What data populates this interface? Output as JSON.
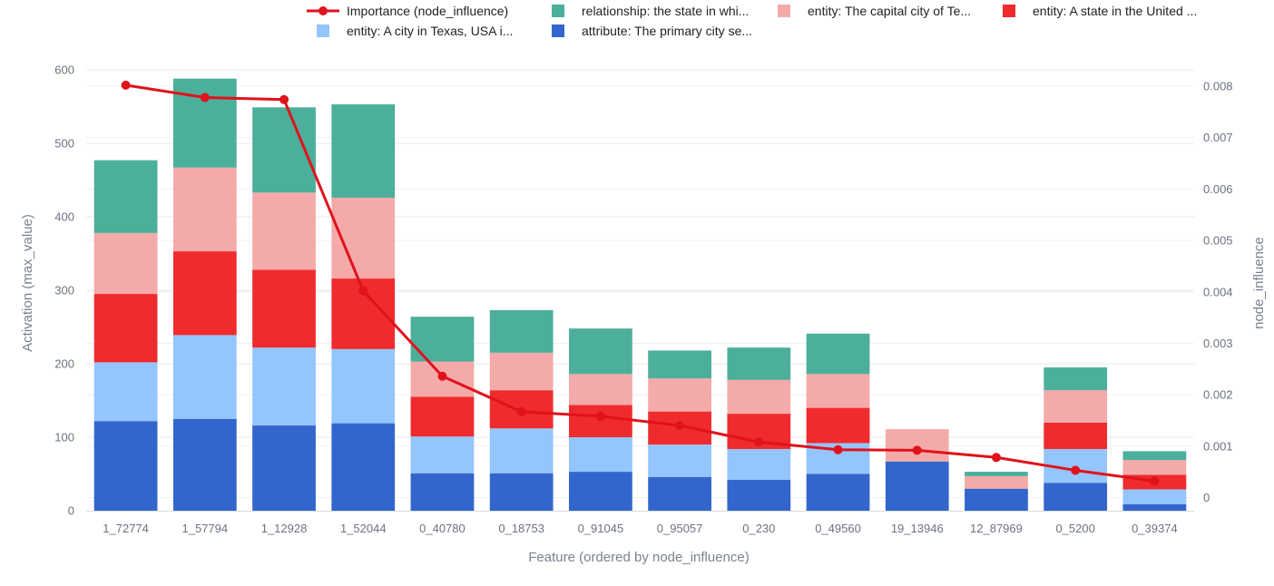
{
  "chart_data": {
    "type": "bar",
    "stacked": true,
    "xlabel": "Feature (ordered by node_influence)",
    "ylabel": "Activation (max_value)",
    "y2label": "node_influence",
    "ylim": [
      0,
      600
    ],
    "y2lim": [
      0,
      0.0085
    ],
    "yticks": [
      "0",
      "100",
      "200",
      "300",
      "400",
      "500",
      "600"
    ],
    "y2ticks": [
      "0",
      "0.001",
      "0.002",
      "0.003",
      "0.004",
      "0.005",
      "0.006",
      "0.007",
      "0.008"
    ],
    "categories": [
      "1_72774",
      "1_57794",
      "1_12928",
      "1_52044",
      "0_40780",
      "0_18753",
      "0_91045",
      "0_95057",
      "0_230",
      "0_49560",
      "19_13946",
      "12_87969",
      "0_5200",
      "0_39374"
    ],
    "series": [
      {
        "name": "attribute: The primary city se...",
        "color": "#3366cc",
        "values": [
          122,
          125,
          116,
          119,
          51,
          51,
          53,
          46,
          42,
          50,
          67,
          30,
          38,
          9
        ]
      },
      {
        "name": "entity: A city in Texas, USA i...",
        "color": "#94c5fc",
        "values": [
          80,
          114,
          106,
          101,
          50,
          61,
          47,
          44,
          42,
          42,
          0,
          0,
          46,
          20
        ]
      },
      {
        "name": "entity: A state in the United ...",
        "color": "#ef2b2e",
        "values": [
          93,
          114,
          106,
          96,
          54,
          52,
          44,
          45,
          48,
          48,
          0,
          0,
          36,
          20
        ]
      },
      {
        "name": "entity: The capital city of Te...",
        "color": "#f4aaa9",
        "values": [
          83,
          114,
          105,
          110,
          48,
          51,
          42,
          45,
          46,
          46,
          44,
          17,
          44,
          20
        ]
      },
      {
        "name": "relationship: the state in whi...",
        "color": "#4caf9b",
        "values": [
          99,
          121,
          116,
          127,
          61,
          58,
          62,
          38,
          44,
          55,
          0,
          6,
          31,
          12
        ]
      }
    ],
    "line": {
      "name": "Importance (node_influence)",
      "color": "#e0121c",
      "values": [
        0.00802,
        0.00778,
        0.00774,
        0.00402,
        0.00236,
        0.00167,
        0.00158,
        0.0014,
        0.00108,
        0.00093,
        0.00092,
        0.00078,
        0.00053,
        0.00032
      ]
    },
    "legend": [
      {
        "label": "Importance (node_influence)",
        "kind": "line",
        "color": "#e0121c"
      },
      {
        "label": "relationship: the state in whi...",
        "kind": "box",
        "color": "#4caf9b"
      },
      {
        "label": "entity: The capital city of Te...",
        "kind": "box",
        "color": "#f4aaa9"
      },
      {
        "label": "entity: A state in the United ...",
        "kind": "box",
        "color": "#ef2b2e"
      },
      {
        "label": "entity: A city in Texas, USA i...",
        "kind": "box",
        "color": "#94c5fc"
      },
      {
        "label": "attribute: The primary city se...",
        "kind": "box",
        "color": "#3366cc"
      }
    ]
  }
}
